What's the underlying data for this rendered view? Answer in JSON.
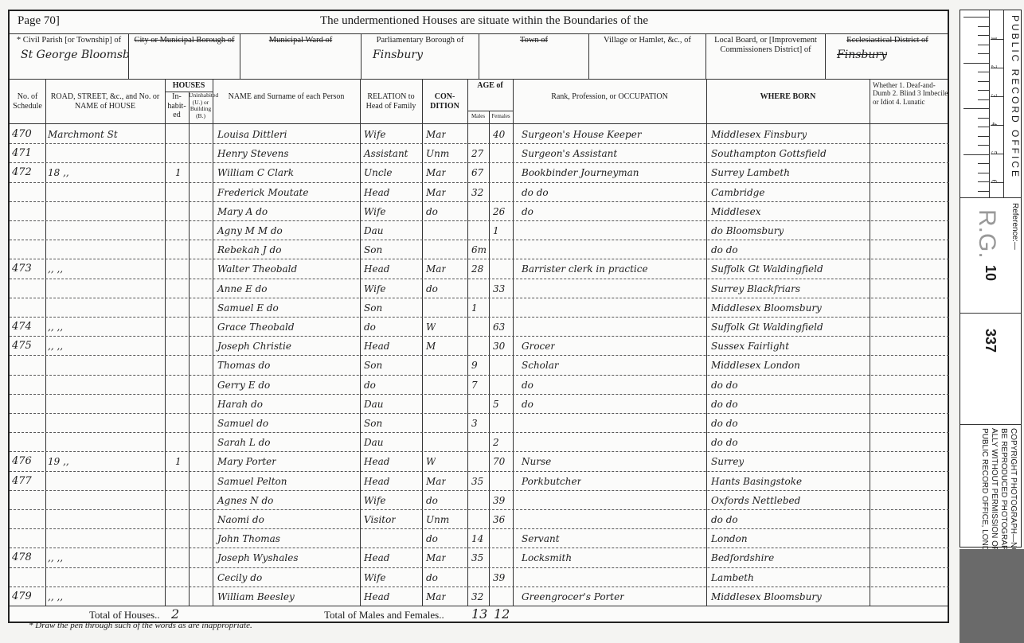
{
  "header": {
    "page": "Page 70]",
    "title": "The undermentioned Houses are situate within the Boundaries of the"
  },
  "boundaries": [
    {
      "label": "* Civil Parish [or Township] of",
      "value": "St George Bloomsbury"
    },
    {
      "label": "City or Municipal Borough of",
      "value": ""
    },
    {
      "label": "Municipal Ward of",
      "value": ""
    },
    {
      "label": "Parliamentary Borough of",
      "value": "Finsbury"
    },
    {
      "label": "Town of",
      "value": ""
    },
    {
      "label": "Village or Hamlet, &c., of",
      "value": ""
    },
    {
      "label": "Local Board, or [Improvement Commissioners District] of",
      "value": ""
    },
    {
      "label": "Ecclesiastical District of",
      "value": "Finsbury"
    }
  ],
  "columns": {
    "schedule": "No. of Schedule",
    "road": "ROAD, STREET, &c., and No. or NAME of HOUSE",
    "houses": "HOUSES",
    "inhabited": "In-habit-ed",
    "uninhabited": "Uninhabited (U.) or Building (B.)",
    "name": "NAME and Surname of each Person",
    "relation": "RELATION to Head of Family",
    "condition": "CON-DITION",
    "age": "AGE of",
    "males": "Males",
    "females": "Females",
    "occupation": "Rank, Profession, or OCCUPATION",
    "born": "WHERE BORN",
    "infirm": "Whether 1. Deaf-and-Dumb 2. Blind 3 Imbecile or Idiot 4. Lunatic"
  },
  "rows": [
    {
      "schedule": "470",
      "road": "Marchmont St",
      "inhabited": "",
      "name": "Louisa Dittleri",
      "relation": "Wife",
      "condition": "Mar",
      "age_m": "",
      "age_f": "40",
      "occupation": "Surgeon's House Keeper",
      "born": "Middlesex Finsbury"
    },
    {
      "schedule": "471",
      "road": "",
      "inhabited": "",
      "name": "Henry Stevens",
      "relation": "Assistant",
      "condition": "Unm",
      "age_m": "27",
      "age_f": "",
      "occupation": "Surgeon's Assistant",
      "born": "Southampton Gottsfield"
    },
    {
      "schedule": "472",
      "road": "18 ,,",
      "inhabited": "1",
      "name": "William C Clark",
      "relation": "Uncle",
      "condition": "Mar",
      "age_m": "67",
      "age_f": "",
      "occupation": "Bookbinder Journeyman",
      "born": "Surrey Lambeth"
    },
    {
      "schedule": "",
      "road": "",
      "inhabited": "",
      "name": "Frederick Moutate",
      "relation": "Head",
      "condition": "Mar",
      "age_m": "32",
      "age_f": "",
      "occupation": "do      do",
      "born": "Cambridge"
    },
    {
      "schedule": "",
      "road": "",
      "inhabited": "",
      "name": "Mary A  do",
      "relation": "Wife",
      "condition": "do",
      "age_m": "",
      "age_f": "26",
      "occupation": "do",
      "born": "Middlesex"
    },
    {
      "schedule": "",
      "road": "",
      "inhabited": "",
      "name": "Agny M M  do",
      "relation": "Dau",
      "condition": "",
      "age_m": "",
      "age_f": "1",
      "occupation": "",
      "born": "do Bloomsbury"
    },
    {
      "schedule": "",
      "road": "",
      "inhabited": "",
      "name": "Rebekah J  do",
      "relation": "Son",
      "condition": "",
      "age_m": "6m",
      "age_f": "",
      "occupation": "",
      "born": "do   do"
    },
    {
      "schedule": "473",
      "road": ",,      ,,",
      "inhabited": "",
      "name": "Walter Theobald",
      "relation": "Head",
      "condition": "Mar",
      "age_m": "28",
      "age_f": "",
      "occupation": "Barrister clerk in practice",
      "born": "Suffolk Gt Waldingfield"
    },
    {
      "schedule": "",
      "road": "",
      "inhabited": "",
      "name": "Anne E  do",
      "relation": "Wife",
      "condition": "do",
      "age_m": "",
      "age_f": "33",
      "occupation": "",
      "born": "Surrey Blackfriars"
    },
    {
      "schedule": "",
      "road": "",
      "inhabited": "",
      "name": "Samuel E  do",
      "relation": "Son",
      "condition": "",
      "age_m": "1",
      "age_f": "",
      "occupation": "",
      "born": "Middlesex Bloomsbury"
    },
    {
      "schedule": "474",
      "road": ",,      ,,",
      "inhabited": "",
      "name": "Grace Theobald",
      "relation": "do",
      "condition": "W",
      "age_m": "",
      "age_f": "63",
      "occupation": "",
      "born": "Suffolk Gt Waldingfield"
    },
    {
      "schedule": "475",
      "road": ",,      ,,",
      "inhabited": "",
      "name": "Joseph Christie",
      "relation": "Head",
      "condition": "M",
      "age_m": "",
      "age_f": "30",
      "occupation": "Grocer",
      "born": "Sussex Fairlight"
    },
    {
      "schedule": "",
      "road": "",
      "inhabited": "",
      "name": "Thomas  do",
      "relation": "Son",
      "condition": "",
      "age_m": "9",
      "age_f": "",
      "occupation": "Scholar",
      "born": "Middlesex London"
    },
    {
      "schedule": "",
      "road": "",
      "inhabited": "",
      "name": "Gerry E  do",
      "relation": "do",
      "condition": "",
      "age_m": "7",
      "age_f": "",
      "occupation": "do",
      "born": "do      do"
    },
    {
      "schedule": "",
      "road": "",
      "inhabited": "",
      "name": "Harah  do",
      "relation": "Dau",
      "condition": "",
      "age_m": "",
      "age_f": "5",
      "occupation": "do",
      "born": "do      do"
    },
    {
      "schedule": "",
      "road": "",
      "inhabited": "",
      "name": "Samuel  do",
      "relation": "Son",
      "condition": "",
      "age_m": "3",
      "age_f": "",
      "occupation": "",
      "born": "do      do"
    },
    {
      "schedule": "",
      "road": "",
      "inhabited": "",
      "name": "Sarah L  do",
      "relation": "Dau",
      "condition": "",
      "age_m": "",
      "age_f": "2",
      "occupation": "",
      "born": "do      do"
    },
    {
      "schedule": "476",
      "road": "19 ,,",
      "inhabited": "1",
      "name": "Mary Porter",
      "relation": "Head",
      "condition": "W",
      "age_m": "",
      "age_f": "70",
      "occupation": "Nurse",
      "born": "Surrey"
    },
    {
      "schedule": "477",
      "road": "",
      "inhabited": "",
      "name": "Samuel Pelton",
      "relation": "Head",
      "condition": "Mar",
      "age_m": "35",
      "age_f": "",
      "occupation": "Porkbutcher",
      "born": "Hants Basingstoke"
    },
    {
      "schedule": "",
      "road": "",
      "inhabited": "",
      "name": "Agnes N  do",
      "relation": "Wife",
      "condition": "do",
      "age_m": "",
      "age_f": "39",
      "occupation": "",
      "born": "Oxfords Nettlebed"
    },
    {
      "schedule": "",
      "road": "",
      "inhabited": "",
      "name": "Naomi  do",
      "relation": "Visitor",
      "condition": "Unm",
      "age_m": "",
      "age_f": "36",
      "occupation": "",
      "born": "do     do"
    },
    {
      "schedule": "",
      "road": "",
      "inhabited": "",
      "name": "John Thomas",
      "relation": "",
      "condition": "do",
      "age_m": "14",
      "age_f": "",
      "occupation": "Servant",
      "born": "London"
    },
    {
      "schedule": "478",
      "road": ",,      ,,",
      "inhabited": "",
      "name": "Joseph Wyshales",
      "relation": "Head",
      "condition": "Mar",
      "age_m": "35",
      "age_f": "",
      "occupation": "Locksmith",
      "born": "Bedfordshire"
    },
    {
      "schedule": "",
      "road": "",
      "inhabited": "",
      "name": "Cecily  do",
      "relation": "Wife",
      "condition": "do",
      "age_m": "",
      "age_f": "39",
      "occupation": "",
      "born": "Lambeth"
    },
    {
      "schedule": "479",
      "road": ",,      ,,",
      "inhabited": "",
      "name": "William Beesley",
      "relation": "Head",
      "condition": "Mar",
      "age_m": "32",
      "age_f": "",
      "occupation": "Greengrocer's Porter",
      "born": "Middlesex Bloomsbury"
    }
  ],
  "totals": {
    "houses_label": "Total of Houses..",
    "houses": "2",
    "persons_label": "Total of Males and Females..",
    "males": "13",
    "females": "12"
  },
  "footnote": "* Draw the pen through such of the words as are inappropriate.",
  "stamp": {
    "office": "PUBLIC RECORD OFFICE",
    "ruler": [
      "1",
      "2",
      "3",
      "4",
      "5",
      "6"
    ],
    "reference_label": "Reference:—",
    "ref_class": "R.G.",
    "ref_piece": "10",
    "ref_folio": "337",
    "copyright": [
      "COPYRIGHT PHOTOGRAPH—NOT TO",
      "BE REPRODUCED PHOTOGRAPHIC-",
      "ALLY WITHOUT PERMISSION OF THE",
      "PUBLIC RECORD OFFICE, LONDON"
    ]
  }
}
